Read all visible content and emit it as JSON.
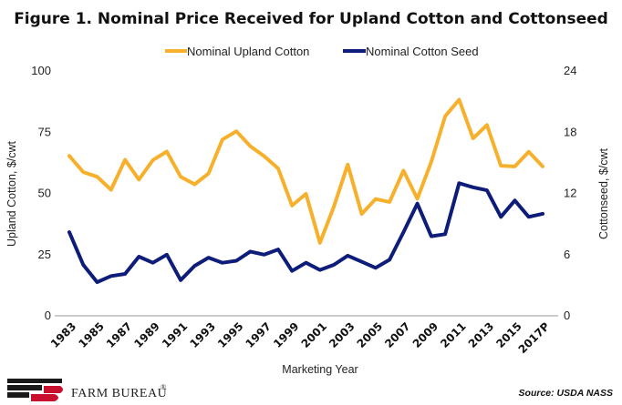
{
  "chart_data": {
    "type": "line",
    "title": "Figure 1. Nominal Price Received for Upland Cotton and Cottonseed",
    "xlabel": "Marketing Year",
    "ylabel_left": "Upland Cotton, $/cwt",
    "ylabel_right": "Cottonseed, $/cwt",
    "ylim_left": [
      0,
      100
    ],
    "ylim_right": [
      0,
      24
    ],
    "yticks_left": [
      "0",
      "25",
      "50",
      "75",
      "100"
    ],
    "yticks_right": [
      "0",
      "6",
      "12",
      "18",
      "24"
    ],
    "grid": false,
    "legend_position": "top",
    "x": [
      "1983",
      "1984",
      "1985",
      "1986",
      "1987",
      "1988",
      "1989",
      "1990",
      "1991",
      "1992",
      "1993",
      "1994",
      "1995",
      "1996",
      "1997",
      "1998",
      "1999",
      "2000",
      "2001",
      "2002",
      "2003",
      "2004",
      "2005",
      "2006",
      "2007",
      "2008",
      "2009",
      "2010",
      "2011",
      "2012",
      "2013",
      "2014",
      "2015",
      "2016",
      "2017P"
    ],
    "xtick_labels": [
      "1983",
      "1985",
      "1987",
      "1989",
      "1991",
      "1993",
      "1995",
      "1997",
      "1999",
      "2001",
      "2003",
      "2005",
      "2007",
      "2009",
      "2011",
      "2013",
      "2015",
      "2017P"
    ],
    "series": [
      {
        "name": "Nominal Upland Cotton",
        "axis": "left",
        "color": "#F7B02C",
        "values": [
          65.3,
          58.7,
          56.8,
          51.5,
          63.7,
          55.6,
          63.6,
          67.1,
          56.8,
          53.7,
          58.1,
          72.0,
          75.4,
          69.3,
          65.2,
          60.2,
          45.0,
          49.8,
          29.8,
          44.5,
          61.8,
          41.6,
          47.7,
          46.5,
          59.3,
          47.8,
          62.9,
          81.5,
          88.3,
          72.5,
          77.9,
          61.3,
          61.0,
          67.0,
          61.0
        ]
      },
      {
        "name": "Nominal Cotton Seed",
        "axis": "right",
        "color": "#0E1C7A",
        "values": [
          8.2,
          5.0,
          3.3,
          3.9,
          4.1,
          5.8,
          5.2,
          6.0,
          3.5,
          4.9,
          5.7,
          5.2,
          5.4,
          6.3,
          6.0,
          6.5,
          4.4,
          5.2,
          4.5,
          5.0,
          5.9,
          5.3,
          4.7,
          5.5,
          8.2,
          11.0,
          7.8,
          8.0,
          13.0,
          12.6,
          12.3,
          9.7,
          11.3,
          9.7,
          10.0
        ]
      }
    ]
  },
  "footer": {
    "brand": "FARM BUREAU",
    "brand_mark": "®",
    "source": "Source: USDA NASS"
  }
}
